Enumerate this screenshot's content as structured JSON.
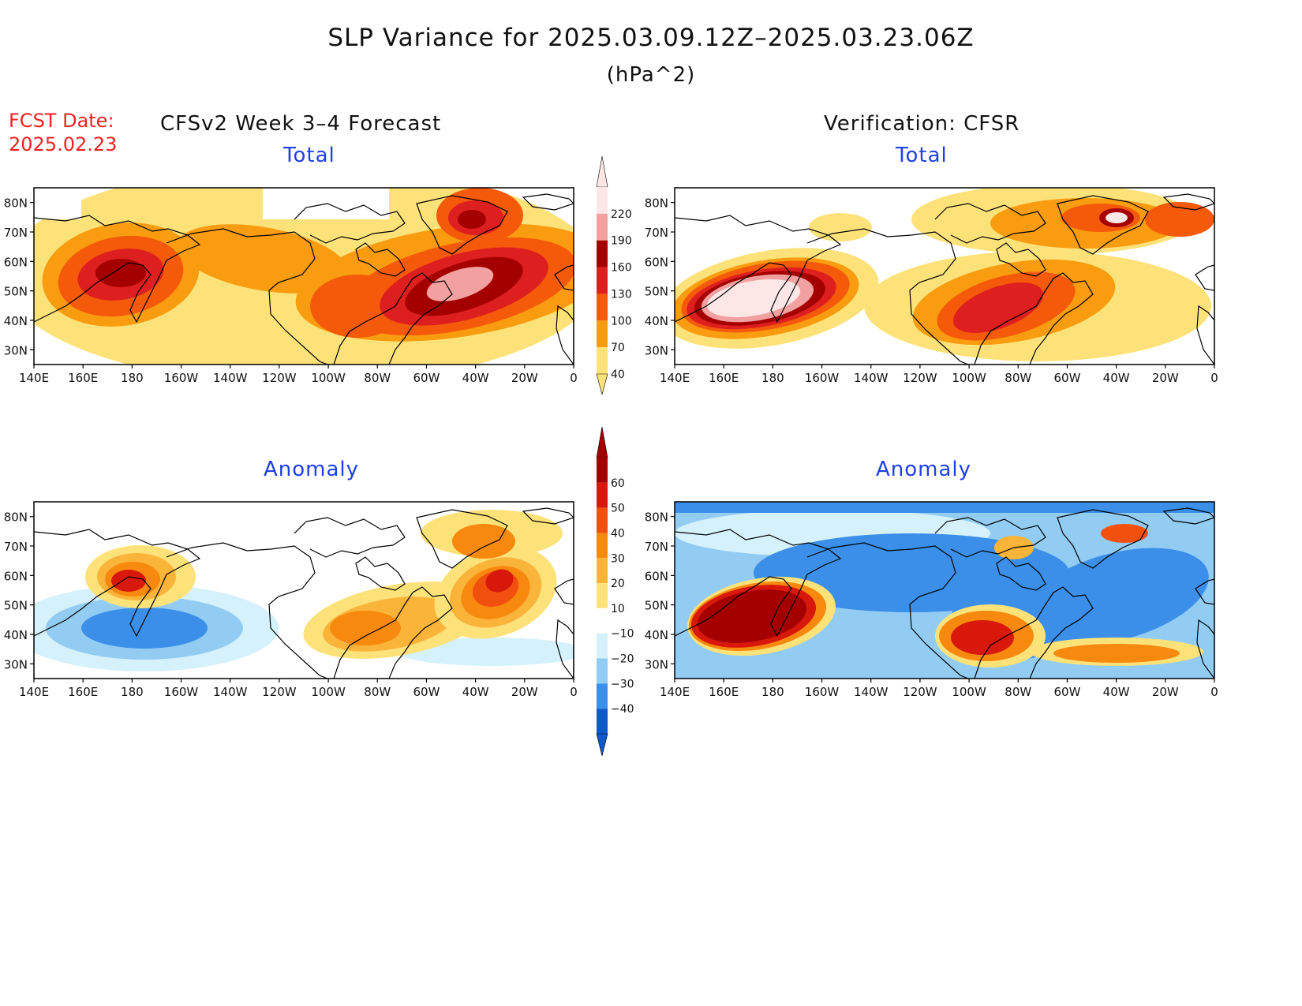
{
  "title": "SLP Variance for 2025.03.09.12Z–2025.03.23.06Z",
  "units": "(hPa^2)",
  "fcst_date_label": "FCST Date:",
  "fcst_date": "2025.02.23",
  "left_column_title": "CFSv2 Week 3–4 Forecast",
  "right_column_title": "Verification: CFSR",
  "panels": {
    "fcst_total": {
      "title": "Total"
    },
    "obs_total": {
      "title": "Total"
    },
    "fcst_anom": {
      "title": "Anomaly"
    },
    "obs_anom": {
      "title": "Anomaly"
    }
  },
  "lat_labels": [
    "80N",
    "70N",
    "60N",
    "50N",
    "40N",
    "30N"
  ],
  "lon_labels": [
    "140E",
    "160E",
    "180",
    "160W",
    "140W",
    "120W",
    "100W",
    "80W",
    "60W",
    "40W",
    "20W",
    "0"
  ],
  "map_extent": {
    "lon_min": 140,
    "lon_max": 360,
    "lat_min": 25,
    "lat_max": 85
  },
  "colorbar_total": {
    "labels": [
      "220",
      "190",
      "160",
      "130",
      "100",
      "70",
      "40"
    ],
    "colors": [
      "#fde6e6",
      "#f2a0a0",
      "#a50000",
      "#de1f1f",
      "#f45a0a",
      "#f99c10",
      "#fde27a"
    ]
  },
  "colorbar_anomaly": {
    "labels": [
      "60",
      "50",
      "40",
      "30",
      "20",
      "10",
      "−10",
      "−20",
      "−30",
      "−40"
    ],
    "colors": [
      "#a50000",
      "#d9180c",
      "#f2500f",
      "#f8890f",
      "#fbb43a",
      "#fde27a",
      "#ffffff",
      "#d5f1fb",
      "#93ccf3",
      "#3b8fe8",
      "#1158c8"
    ]
  }
}
